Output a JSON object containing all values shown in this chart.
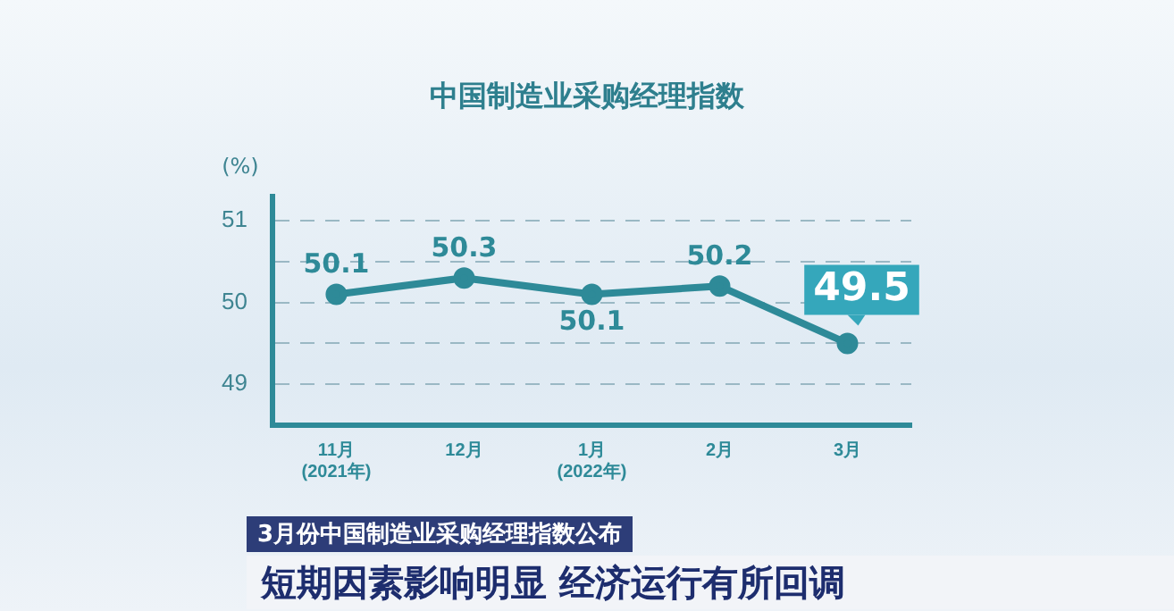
{
  "chart_data": {
    "type": "line",
    "title": "中国制造业采购经理指数",
    "ylabel": "(%)",
    "categories": [
      "11月\n(2021年)",
      "12月",
      "1月\n(2022年)",
      "2月",
      "3月"
    ],
    "series": [
      {
        "color": "#2e8a98",
        "values": [
          50.1,
          50.3,
          50.1,
          50.2,
          49.5
        ]
      }
    ],
    "ylim": [
      48.5,
      51.3
    ],
    "yticks": [
      49,
      {
        "value": 49.5,
        "label": null
      },
      50,
      {
        "value": 50.5,
        "label": null
      },
      51
    ],
    "grid": "y",
    "marker": "circle",
    "line_style": "solid",
    "data_labels": true,
    "legend": false,
    "annotations": [
      "3月份中国制造业采购经理指数公布",
      "短期因素影响明显 经济运行有所回调"
    ]
  }
}
